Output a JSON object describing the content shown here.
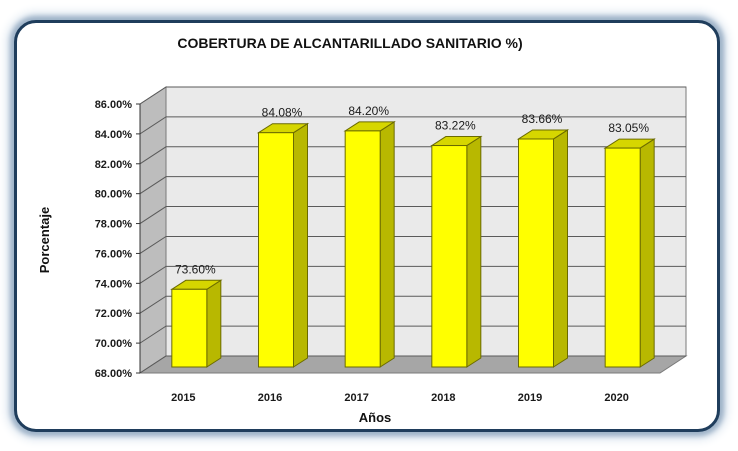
{
  "chart_data": {
    "type": "bar",
    "title": "COBERTURA DE ALCANTARILLADO SANITARIO %)",
    "xlabel": "Años",
    "ylabel": "Porcentaje",
    "categories": [
      "2015",
      "2016",
      "2017",
      "2018",
      "2019",
      "2020"
    ],
    "values": [
      73.6,
      84.08,
      84.2,
      83.22,
      83.66,
      83.05
    ],
    "data_labels": [
      "73.60%",
      "84.08%",
      "84.20%",
      "83.22%",
      "83.66%",
      "83.05%"
    ],
    "ylim": [
      68,
      86
    ],
    "yticks": [
      68,
      70,
      72,
      74,
      76,
      78,
      80,
      82,
      84,
      86
    ],
    "ytick_labels": [
      "68.00%",
      "70.00%",
      "72.00%",
      "74.00%",
      "76.00%",
      "78.00%",
      "80.00%",
      "82.00%",
      "84.00%",
      "86.00%"
    ],
    "grid": true,
    "legend": "none",
    "style": "3d-column",
    "colors": {
      "bar_front": "#ffff00",
      "bar_side": "#b8b800",
      "bar_top": "#d6d600",
      "bar_outline": "#6b6b00",
      "floor": "#a6a6a6",
      "back_wall": "#eaeaea",
      "side_wall": "#bdbdbd",
      "gridline": "#5a5a5a",
      "frame_border": "#1f3d5c"
    }
  }
}
